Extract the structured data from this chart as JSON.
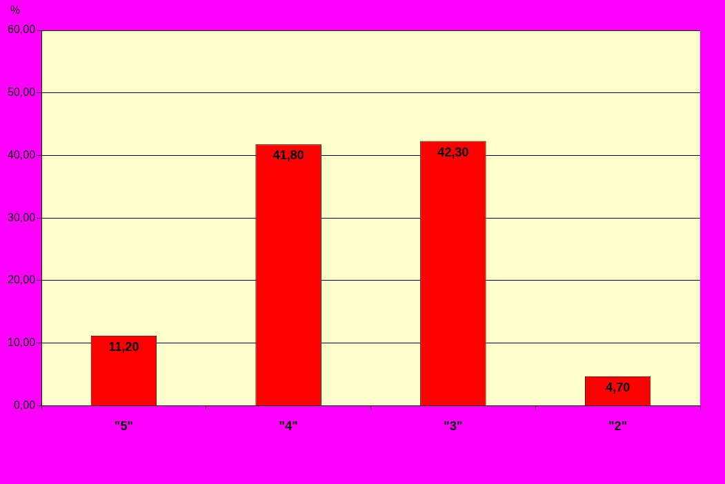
{
  "chart_data": {
    "type": "bar",
    "ylabel": "%",
    "categories": [
      "\"5\"",
      "\"4\"",
      "\"3\"",
      "\"2\""
    ],
    "values": [
      11.2,
      41.8,
      42.3,
      4.7
    ],
    "value_labels": [
      "11,20",
      "41,80",
      "42,30",
      "4,70"
    ],
    "color": "#ff0000",
    "ylim": [
      0,
      60
    ],
    "yticks": [
      {
        "value": 0,
        "label": "0,00"
      },
      {
        "value": 10,
        "label": "10,00"
      },
      {
        "value": 20,
        "label": "20,00"
      },
      {
        "value": 30,
        "label": "30,00"
      },
      {
        "value": 40,
        "label": "40,00"
      },
      {
        "value": 50,
        "label": "50,00"
      },
      {
        "value": 60,
        "label": "60,00"
      }
    ],
    "grid": "y",
    "legend": false
  }
}
